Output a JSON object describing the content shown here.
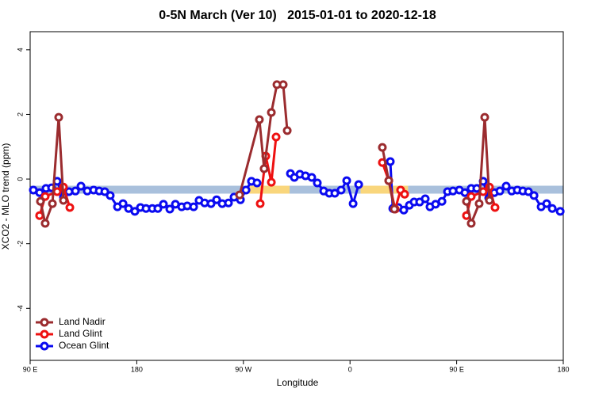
{
  "chart_data": {
    "type": "line",
    "title": "0-5N March (Ver 10)   2015-01-01 to 2020-12-18",
    "xlabel": "Longitude",
    "ylabel": "XCO2 - MLO trend (ppm)",
    "xlim": [
      90,
      540
    ],
    "ylim": [
      -5.61,
      4.56
    ],
    "xticks": [
      {
        "value": 90,
        "label": "90 E"
      },
      180,
      {
        "value": 270,
        "label": "90 W"
      },
      {
        "value": 360,
        "label": "0"
      },
      {
        "value": 450,
        "label": "90 E"
      },
      180
    ],
    "yticks": [
      -4,
      -2,
      0,
      2,
      4
    ],
    "legend": "bottom-left",
    "reference_band": {
      "y": -0.33,
      "segments": [
        {
          "from": 90,
          "to": 272,
          "color": "#a9c0dc"
        },
        {
          "from": 272,
          "to": 309,
          "color": "#f9d67c"
        },
        {
          "from": 309,
          "to": 369,
          "color": "#a9c0dc"
        },
        {
          "from": 369,
          "to": 409,
          "color": "#f9d67c"
        },
        {
          "from": 409,
          "to": 540,
          "color": "#a9c0dc"
        }
      ]
    },
    "series": [
      {
        "name": "Land Nadir",
        "color": "#9b2c2f",
        "x": [
          98.7,
          102.7,
          108.8,
          114.1,
          118.1,
          null,
          266.8,
          283.5,
          287.5,
          293.6,
          298.3,
          303.6,
          307.0,
          null,
          387.3,
          392.7,
          397.4,
          null,
          458.3,
          462.3,
          469.0,
          473.7,
          477.7
        ],
        "values": [
          -0.69,
          -1.37,
          -0.76,
          1.91,
          -0.66,
          null,
          -0.49,
          1.84,
          0.32,
          2.06,
          2.92,
          2.92,
          1.5,
          null,
          0.98,
          -0.05,
          -0.93,
          null,
          -0.69,
          -1.37,
          -0.76,
          1.91,
          -0.66
        ]
      },
      {
        "name": "Land Glint",
        "color": "#ee1111",
        "x": [
          98.0,
          102.7,
          112.8,
          118.1,
          123.5,
          null,
          284.2,
          288.9,
          293.6,
          297.6,
          null,
          387.3,
          392.7,
          398.1,
          402.7,
          406.1,
          null,
          458.3,
          462.3,
          472.4,
          477.7,
          482.4
        ],
        "values": [
          -1.13,
          -0.54,
          -0.39,
          -0.25,
          -0.88,
          null,
          -0.76,
          0.71,
          -0.1,
          1.3,
          null,
          0.51,
          -0.05,
          -0.93,
          -0.34,
          -0.47,
          null,
          -1.13,
          -0.54,
          -0.39,
          -0.25,
          -0.88
        ]
      },
      {
        "name": "Ocean Glint",
        "color": "#0a0af0",
        "x": [
          92.7,
          98.0,
          103.4,
          108.1,
          112.8,
          118.1,
          122.8,
          128.2,
          132.9,
          138.2,
          143.6,
          148.3,
          153.0,
          157.6,
          163.7,
          168.4,
          173.1,
          178.4,
          183.1,
          187.8,
          193.1,
          197.8,
          202.5,
          207.9,
          212.6,
          217.9,
          222.6,
          228.0,
          232.6,
          237.3,
          242.7,
          247.4,
          252.1,
          257.4,
          262.1,
          267.5,
          272.2,
          276.8,
          281.5,
          null,
          309.7,
          313.0,
          317.7,
          322.4,
          327.7,
          332.4,
          337.8,
          342.5,
          347.2,
          352.5,
          357.2,
          362.6,
          367.3,
          null,
          394.0,
          396.1,
          400.8,
          405.4,
          410.1,
          414.1,
          418.8,
          423.5,
          427.5,
          432.2,
          437.6,
          442.3,
          446.9,
          452.3,
          457.0,
          462.3,
          467.0,
          472.4,
          477.1,
          481.8,
          486.5,
          491.8,
          496.5,
          501.2,
          505.9,
          510.6,
          515.3,
          521.3,
          526.0,
          530.7,
          537.4
        ],
        "values": [
          -0.34,
          -0.42,
          -0.29,
          -0.27,
          -0.07,
          -0.56,
          -0.39,
          -0.37,
          -0.22,
          -0.37,
          -0.34,
          -0.37,
          -0.39,
          -0.51,
          -0.86,
          -0.76,
          -0.91,
          -1.0,
          -0.88,
          -0.91,
          -0.91,
          -0.91,
          -0.78,
          -0.93,
          -0.78,
          -0.86,
          -0.83,
          -0.86,
          -0.66,
          -0.74,
          -0.76,
          -0.64,
          -0.76,
          -0.74,
          -0.56,
          -0.64,
          -0.34,
          -0.07,
          -0.12,
          null,
          0.17,
          0.05,
          0.15,
          0.1,
          0.05,
          -0.12,
          -0.37,
          -0.44,
          -0.44,
          -0.34,
          -0.05,
          -0.76,
          -0.17,
          null,
          0.54,
          -0.91,
          -0.88,
          -0.96,
          -0.81,
          -0.71,
          -0.71,
          -0.61,
          -0.86,
          -0.78,
          -0.69,
          -0.39,
          -0.37,
          -0.34,
          -0.42,
          -0.29,
          -0.29,
          -0.07,
          -0.59,
          -0.42,
          -0.37,
          -0.22,
          -0.37,
          -0.34,
          -0.37,
          -0.39,
          -0.51,
          -0.86,
          -0.76,
          -0.91,
          -1.0
        ]
      }
    ]
  }
}
